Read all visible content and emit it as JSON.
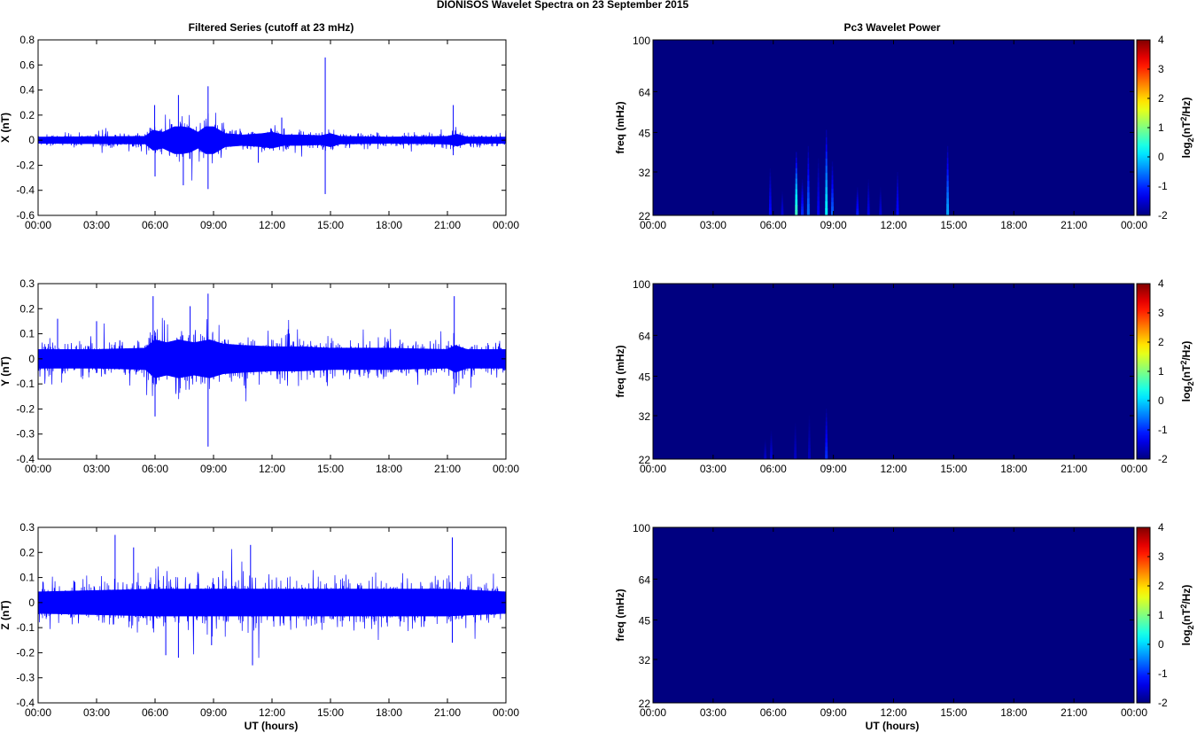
{
  "figure_title": "DIONISOS Wavelet Spectra on 23 September 2015",
  "left_column_title": "Filtered Series (cutoff at 23 mHz)",
  "right_column_title": "Pc3 Wavelet Power",
  "x_axis_label": "UT (hours)",
  "colors": {
    "series": "#0000ff",
    "background_low": "#00008f",
    "axes": "#000000"
  },
  "chart_data": [
    {
      "type": "line",
      "panel": "X",
      "ylabel": "X (nT)",
      "xlabel": "",
      "x_ticks": [
        "00:00",
        "03:00",
        "06:00",
        "09:00",
        "12:00",
        "15:00",
        "18:00",
        "21:00",
        "00:00"
      ],
      "xlim_hours": [
        0,
        24
      ],
      "ylim": [
        -0.6,
        0.8
      ],
      "y_ticks": [
        -0.6,
        -0.4,
        -0.2,
        0,
        0.2,
        0.4,
        0.6,
        0.8
      ],
      "y_tick_labels": [
        "-0.6",
        "-0.4",
        "-0.2",
        "0",
        "0.2",
        "0.4",
        "0.6",
        "0.8"
      ],
      "series_color": "#0000ff",
      "noise_envelope_nT": 0.05,
      "envelope": {
        "hours": [
          0,
          5.5,
          5.9,
          6.4,
          7.0,
          7.4,
          7.8,
          8.2,
          8.6,
          9.0,
          9.6,
          10.5,
          11.5,
          12.0,
          12.6,
          13.5,
          14.5,
          15.0,
          15.5,
          18.0,
          21.0,
          21.5,
          22.0,
          24.0
        ],
        "amplitude_nT": [
          0.05,
          0.06,
          0.15,
          0.12,
          0.2,
          0.2,
          0.18,
          0.12,
          0.2,
          0.2,
          0.1,
          0.08,
          0.1,
          0.12,
          0.08,
          0.08,
          0.07,
          0.1,
          0.06,
          0.05,
          0.06,
          0.09,
          0.05,
          0.05
        ]
      },
      "spikes": [
        {
          "hour": 5.98,
          "value": 0.28
        },
        {
          "hour": 6.0,
          "value": -0.29
        },
        {
          "hour": 7.2,
          "value": 0.36
        },
        {
          "hour": 7.45,
          "value": -0.36
        },
        {
          "hour": 8.72,
          "value": 0.43
        },
        {
          "hour": 8.72,
          "value": -0.39
        },
        {
          "hour": 14.73,
          "value": 0.66
        },
        {
          "hour": 14.73,
          "value": -0.43
        },
        {
          "hour": 21.3,
          "value": 0.28
        },
        {
          "hour": 21.3,
          "value": -0.12
        },
        {
          "hour": 12.5,
          "value": 0.18
        },
        {
          "hour": 11.3,
          "value": -0.18
        }
      ]
    },
    {
      "type": "line",
      "panel": "Y",
      "ylabel": "Y (nT)",
      "xlabel": "",
      "x_ticks": [
        "00:00",
        "03:00",
        "06:00",
        "09:00",
        "12:00",
        "15:00",
        "18:00",
        "21:00",
        "00:00"
      ],
      "xlim_hours": [
        0,
        24
      ],
      "ylim": [
        -0.4,
        0.3
      ],
      "y_ticks": [
        -0.4,
        -0.3,
        -0.2,
        -0.1,
        0,
        0.1,
        0.2,
        0.3
      ],
      "y_tick_labels": [
        "-0.4",
        "-0.3",
        "-0.2",
        "-0.1",
        "0",
        "0.1",
        "0.2",
        "0.3"
      ],
      "series_color": "#0000ff",
      "noise_envelope_nT": 0.06,
      "envelope": {
        "hours": [
          0,
          3.0,
          5.5,
          6.0,
          6.6,
          7.2,
          8.0,
          8.8,
          9.5,
          10.5,
          12.0,
          13.5,
          15.0,
          18.0,
          21.0,
          21.4,
          22.0,
          24.0
        ],
        "amplitude_nT": [
          0.07,
          0.07,
          0.08,
          0.14,
          0.12,
          0.14,
          0.12,
          0.14,
          0.11,
          0.1,
          0.09,
          0.09,
          0.08,
          0.08,
          0.07,
          0.1,
          0.07,
          0.07
        ]
      },
      "spikes": [
        {
          "hour": 5.9,
          "value": 0.25
        },
        {
          "hour": 6.0,
          "value": -0.23
        },
        {
          "hour": 8.72,
          "value": 0.26
        },
        {
          "hour": 8.72,
          "value": -0.35
        },
        {
          "hour": 21.35,
          "value": 0.25
        },
        {
          "hour": 21.35,
          "value": -0.14
        },
        {
          "hour": 7.8,
          "value": 0.21
        },
        {
          "hour": 1.0,
          "value": 0.16
        },
        {
          "hour": 3.0,
          "value": 0.15
        }
      ]
    },
    {
      "type": "line",
      "panel": "Z",
      "ylabel": "Z (nT)",
      "xlabel": "UT (hours)",
      "x_ticks": [
        "00:00",
        "03:00",
        "06:00",
        "09:00",
        "12:00",
        "15:00",
        "18:00",
        "21:00",
        "00:00"
      ],
      "xlim_hours": [
        0,
        24
      ],
      "ylim": [
        -0.4,
        0.3
      ],
      "y_ticks": [
        -0.4,
        -0.3,
        -0.2,
        -0.1,
        0,
        0.1,
        0.2,
        0.3
      ],
      "y_tick_labels": [
        "-0.4",
        "-0.3",
        "-0.2",
        "-0.1",
        "0",
        "0.1",
        "0.2",
        "0.3"
      ],
      "series_color": "#0000ff",
      "noise_envelope_nT": 0.07,
      "envelope": {
        "hours": [
          0,
          3.0,
          6.0,
          9.0,
          12.0,
          15.0,
          18.0,
          21.0,
          24.0
        ],
        "amplitude_nT": [
          0.08,
          0.09,
          0.1,
          0.1,
          0.1,
          0.1,
          0.1,
          0.1,
          0.08
        ]
      },
      "spikes": [
        {
          "hour": 3.95,
          "value": 0.27
        },
        {
          "hour": 4.9,
          "value": 0.22
        },
        {
          "hour": 6.55,
          "value": -0.21
        },
        {
          "hour": 7.2,
          "value": -0.22
        },
        {
          "hour": 10.9,
          "value": 0.23
        },
        {
          "hour": 11.0,
          "value": -0.25
        },
        {
          "hour": 21.25,
          "value": 0.26
        },
        {
          "hour": 21.25,
          "value": -0.16
        },
        {
          "hour": 8.9,
          "value": -0.17
        }
      ]
    },
    {
      "type": "heatmap",
      "panel": "X",
      "ylabel": "freq (mHz)",
      "xlabel": "",
      "x_ticks": [
        "00:00",
        "03:00",
        "06:00",
        "09:00",
        "12:00",
        "15:00",
        "18:00",
        "21:00",
        "00:00"
      ],
      "xlim_hours": [
        0,
        24
      ],
      "y_scale": "log",
      "ylim_mHz": [
        22,
        100
      ],
      "y_ticks": [
        22,
        32,
        45,
        64,
        100
      ],
      "y_tick_labels": [
        "22",
        "32",
        "45",
        "64",
        "100"
      ],
      "colorbar": {
        "label": "log2(nT2/Hz)",
        "label_main": "log",
        "label_sub": "2",
        "label_paren_open": "(nT",
        "label_sup": "2",
        "label_paren_close": "/Hz)",
        "range": [
          -2,
          4
        ],
        "ticks": [
          -2,
          -1,
          0,
          1,
          2,
          3,
          4
        ],
        "tick_labels": [
          "-2",
          "-1",
          "0",
          "1",
          "2",
          "3",
          "4"
        ],
        "colormap": "jet"
      },
      "background_value": -2,
      "features": [
        {
          "hour": 5.85,
          "top_mHz": 33,
          "peak": -1.2
        },
        {
          "hour": 6.45,
          "top_mHz": 27,
          "peak": -1.5
        },
        {
          "hour": 7.15,
          "top_mHz": 38,
          "peak": 0.6
        },
        {
          "hour": 7.45,
          "top_mHz": 30,
          "peak": -1.0
        },
        {
          "hour": 7.75,
          "top_mHz": 40,
          "peak": -0.6
        },
        {
          "hour": 8.25,
          "top_mHz": 36,
          "peak": -1.3
        },
        {
          "hour": 8.65,
          "top_mHz": 46,
          "peak": 0.2
        },
        {
          "hour": 8.95,
          "top_mHz": 35,
          "peak": -0.7
        },
        {
          "hour": 10.2,
          "top_mHz": 28,
          "peak": -1.1
        },
        {
          "hour": 10.75,
          "top_mHz": 30,
          "peak": -1.4
        },
        {
          "hour": 11.35,
          "top_mHz": 28,
          "peak": -1.5
        },
        {
          "hour": 12.2,
          "top_mHz": 32,
          "peak": -1.2
        },
        {
          "hour": 14.7,
          "top_mHz": 40,
          "peak": -0.3
        }
      ]
    },
    {
      "type": "heatmap",
      "panel": "Y",
      "ylabel": "freq (mHz)",
      "xlabel": "",
      "x_ticks": [
        "00:00",
        "03:00",
        "06:00",
        "09:00",
        "12:00",
        "15:00",
        "18:00",
        "21:00",
        "00:00"
      ],
      "xlim_hours": [
        0,
        24
      ],
      "y_scale": "log",
      "ylim_mHz": [
        22,
        100
      ],
      "y_ticks": [
        22,
        32,
        45,
        64,
        100
      ],
      "y_tick_labels": [
        "22",
        "32",
        "45",
        "64",
        "100"
      ],
      "colorbar": {
        "label": "log2(nT2/Hz)",
        "label_main": "log",
        "label_sub": "2",
        "label_paren_open": "(nT",
        "label_sup": "2",
        "label_paren_close": "/Hz)",
        "range": [
          -2,
          4
        ],
        "ticks": [
          -2,
          -1,
          0,
          1,
          2,
          3,
          4
        ],
        "tick_labels": [
          "-2",
          "-1",
          "0",
          "1",
          "2",
          "3",
          "4"
        ],
        "colormap": "jet"
      },
      "background_value": -2,
      "features": [
        {
          "hour": 5.6,
          "top_mHz": 26,
          "peak": -1.6
        },
        {
          "hour": 5.9,
          "top_mHz": 28,
          "peak": -1.5
        },
        {
          "hour": 7.1,
          "top_mHz": 30,
          "peak": -1.6
        },
        {
          "hour": 7.8,
          "top_mHz": 32,
          "peak": -1.6
        },
        {
          "hour": 8.65,
          "top_mHz": 34,
          "peak": -1.0
        }
      ]
    },
    {
      "type": "heatmap",
      "panel": "Z",
      "ylabel": "freq (mHz)",
      "xlabel": "UT (hours)",
      "x_ticks": [
        "00:00",
        "03:00",
        "06:00",
        "09:00",
        "12:00",
        "15:00",
        "18:00",
        "21:00",
        "00:00"
      ],
      "xlim_hours": [
        0,
        24
      ],
      "y_scale": "log",
      "ylim_mHz": [
        22,
        100
      ],
      "y_ticks": [
        22,
        32,
        45,
        64,
        100
      ],
      "y_tick_labels": [
        "22",
        "32",
        "45",
        "64",
        "100"
      ],
      "colorbar": {
        "label": "log2(nT2/Hz)",
        "label_main": "log",
        "label_sub": "2",
        "label_paren_open": "(nT",
        "label_sup": "2",
        "label_paren_close": "/Hz)",
        "range": [
          -2,
          4
        ],
        "ticks": [
          -2,
          -1,
          0,
          1,
          2,
          3,
          4
        ],
        "tick_labels": [
          "-2",
          "-1",
          "0",
          "1",
          "2",
          "3",
          "4"
        ],
        "colormap": "jet"
      },
      "background_value": -2,
      "features": []
    }
  ]
}
